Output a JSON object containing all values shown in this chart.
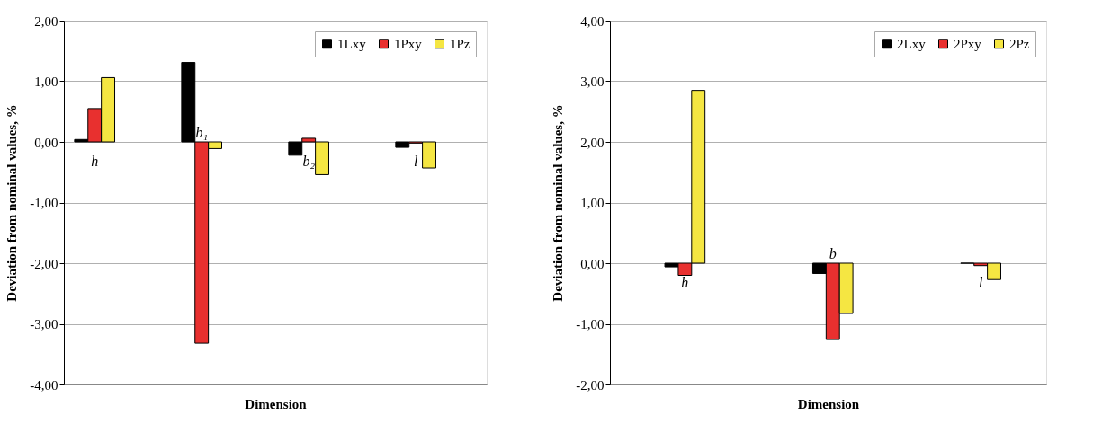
{
  "chart_data": [
    {
      "type": "bar",
      "xlabel": "Dimension",
      "ylabel": "Deviation from nominal values, %",
      "categories": [
        "h",
        "b₁",
        "b₂",
        "l"
      ],
      "series": [
        {
          "name": "1Lxy",
          "color": "#000000",
          "values": [
            0.04,
            1.31,
            -0.22,
            -0.09
          ]
        },
        {
          "name": "1Pxy",
          "color": "#e8302f",
          "values": [
            0.55,
            -3.32,
            0.06,
            -0.02
          ]
        },
        {
          "name": "1Pz",
          "color": "#f5e642",
          "values": [
            1.06,
            -0.11,
            -0.54,
            -0.43
          ]
        }
      ],
      "ylim": [
        -4,
        2
      ],
      "yticks": [
        {
          "value": -4,
          "label": "-4,00"
        },
        {
          "value": -3,
          "label": "-3,00"
        },
        {
          "value": -2,
          "label": "-2,00"
        },
        {
          "value": -1,
          "label": "-1,00"
        },
        {
          "value": 0,
          "label": "0,00"
        },
        {
          "value": 1,
          "label": "1,00"
        },
        {
          "value": 2,
          "label": "2,00"
        }
      ],
      "grid": "y",
      "legend": "top right"
    },
    {
      "type": "bar",
      "xlabel": "Dimension",
      "ylabel": "Deviation from nominal values, %",
      "categories": [
        "h",
        "b",
        "l"
      ],
      "series": [
        {
          "name": "2Lxy",
          "color": "#000000",
          "values": [
            -0.06,
            -0.17,
            0.0
          ]
        },
        {
          "name": "2Pxy",
          "color": "#e8302f",
          "values": [
            -0.2,
            -1.26,
            -0.04
          ]
        },
        {
          "name": "2Pz",
          "color": "#f5e642",
          "values": [
            2.85,
            -0.83,
            -0.27
          ]
        }
      ],
      "ylim": [
        -2,
        4
      ],
      "yticks": [
        {
          "value": -2,
          "label": "-2,00"
        },
        {
          "value": -1,
          "label": "-1,00"
        },
        {
          "value": 0,
          "label": "0,00"
        },
        {
          "value": 1,
          "label": "1,00"
        },
        {
          "value": 2,
          "label": "2,00"
        },
        {
          "value": 3,
          "label": "3,00"
        },
        {
          "value": 4,
          "label": "4,00"
        }
      ],
      "grid": "y",
      "legend": "top right"
    }
  ]
}
